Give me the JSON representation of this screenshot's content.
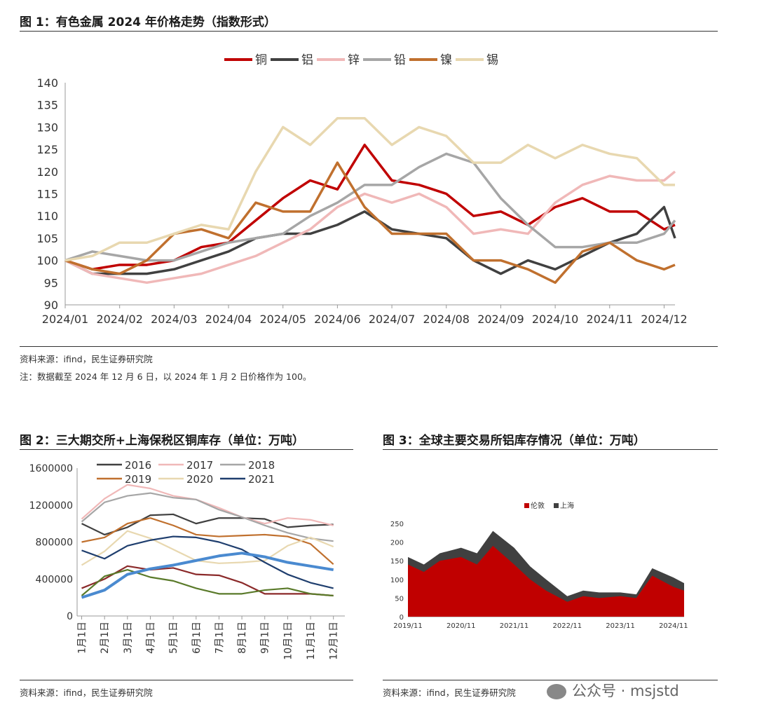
{
  "fig1": {
    "title": "图 1：有色金属 2024 年价格走势（指数形式）",
    "source": "资料来源：ifind，民生证券研究院",
    "note": "注：数据截至 2024 年 12 月 6 日，以 2024 年 1 月 2 日价格作为 100。"
  },
  "fig2": {
    "title": "图 2：三大期交所+上海保税区铜库存（单位：万吨）",
    "source": "资料来源：ifind，民生证券研究院"
  },
  "fig3": {
    "title": "图 3：全球主要交易所铝库存情况（单位：万吨）",
    "source": "资料来源：ifind，民生证券研究院"
  },
  "watermark": "公众号 · msjstd",
  "chart_data": [
    {
      "type": "line",
      "xlabels": [
        "2024/01",
        "2024/02",
        "2024/03",
        "2024/04",
        "2024/05",
        "2024/06",
        "2024/07",
        "2024/08",
        "2024/09",
        "2024/10",
        "2024/11",
        "2024/12"
      ],
      "x": [
        0,
        0.5,
        1,
        1.5,
        2,
        2.5,
        3,
        3.5,
        4,
        4.5,
        5,
        5.5,
        6,
        6.5,
        7,
        7.5,
        8,
        8.5,
        9,
        9.5,
        10,
        10.5,
        11,
        11.2
      ],
      "ylim": [
        90,
        140
      ],
      "yticks": [
        90,
        95,
        100,
        105,
        110,
        115,
        120,
        125,
        130,
        135,
        140
      ],
      "legend_position": "top",
      "series": [
        {
          "name": "铜",
          "color": "#c00000",
          "values": [
            100,
            98,
            99,
            99,
            100,
            103,
            104,
            109,
            114,
            118,
            116,
            126,
            118,
            117,
            115,
            110,
            111,
            108,
            112,
            114,
            111,
            111,
            107,
            108
          ]
        },
        {
          "name": "铝",
          "color": "#404040",
          "values": [
            100,
            97,
            97,
            97,
            98,
            100,
            102,
            105,
            106,
            106,
            108,
            111,
            107,
            106,
            105,
            100,
            97,
            100,
            98,
            101,
            104,
            106,
            112,
            105
          ]
        },
        {
          "name": "锌",
          "color": "#f0b8b8",
          "values": [
            100,
            97,
            96,
            95,
            96,
            97,
            99,
            101,
            104,
            107,
            112,
            115,
            113,
            115,
            112,
            106,
            107,
            106,
            113,
            117,
            119,
            118,
            118,
            120
          ]
        },
        {
          "name": "铅",
          "color": "#a6a6a6",
          "values": [
            100,
            102,
            101,
            100,
            100,
            102,
            104,
            105,
            106,
            110,
            113,
            117,
            117,
            121,
            124,
            122,
            114,
            108,
            103,
            103,
            104,
            104,
            106,
            109
          ]
        },
        {
          "name": "镍",
          "color": "#c0702e",
          "values": [
            100,
            98,
            97,
            100,
            106,
            107,
            105,
            113,
            111,
            111,
            122,
            112,
            106,
            106,
            106,
            100,
            100,
            98,
            95,
            102,
            104,
            100,
            98,
            99
          ]
        },
        {
          "name": "锡",
          "color": "#e8d8b0",
          "values": [
            100,
            101,
            104,
            104,
            106,
            108,
            107,
            120,
            130,
            126,
            132,
            132,
            126,
            130,
            128,
            122,
            122,
            126,
            123,
            126,
            124,
            123,
            117,
            117
          ]
        }
      ]
    },
    {
      "type": "line",
      "categories": [
        "1月1日",
        "2月1日",
        "3月1日",
        "4月1日",
        "5月1日",
        "6月1日",
        "7月1日",
        "8月1日",
        "9月1日",
        "10月1日",
        "11月1日",
        "12月1日"
      ],
      "ylim": [
        0,
        1600000
      ],
      "yticks": [
        0,
        400000,
        800000,
        1200000,
        1600000
      ],
      "series": [
        {
          "name": "2016",
          "color": "#404040",
          "values": [
            1000000,
            880000,
            960000,
            1090000,
            1100000,
            1000000,
            1060000,
            1060000,
            1050000,
            960000,
            980000,
            990000
          ]
        },
        {
          "name": "2017",
          "color": "#f0b8b8",
          "values": [
            1050000,
            1270000,
            1420000,
            1380000,
            1300000,
            1260000,
            1170000,
            1070000,
            1000000,
            1060000,
            1040000,
            980000
          ]
        },
        {
          "name": "2018",
          "color": "#a6a6a6",
          "values": [
            1020000,
            1230000,
            1300000,
            1330000,
            1280000,
            1260000,
            1150000,
            1070000,
            980000,
            900000,
            840000,
            810000
          ]
        },
        {
          "name": "2019",
          "color": "#c0702e",
          "values": [
            800000,
            850000,
            1000000,
            1060000,
            980000,
            880000,
            860000,
            870000,
            880000,
            860000,
            780000,
            560000
          ]
        },
        {
          "name": "2020",
          "color": "#e8d8b0",
          "values": [
            550000,
            700000,
            920000,
            840000,
            720000,
            600000,
            570000,
            580000,
            600000,
            760000,
            850000,
            750000
          ]
        },
        {
          "name": "2021",
          "color": "#1f3e6e",
          "values": [
            710000,
            620000,
            760000,
            820000,
            860000,
            850000,
            800000,
            720000,
            580000,
            450000,
            360000,
            300000
          ]
        },
        {
          "color": "#8b2a2a",
          "values": [
            300000,
            400000,
            540000,
            500000,
            520000,
            450000,
            440000,
            360000,
            240000,
            240000,
            240000,
            220000
          ]
        },
        {
          "color": "#5a7a2a",
          "values": [
            220000,
            430000,
            500000,
            420000,
            380000,
            300000,
            240000,
            240000,
            280000,
            300000,
            240000,
            220000
          ]
        },
        {
          "color": "#4a8ad0",
          "values": [
            200000,
            280000,
            450000,
            510000,
            550000,
            600000,
            650000,
            680000,
            640000,
            580000,
            540000,
            500000
          ]
        }
      ]
    },
    {
      "type": "area",
      "title": "",
      "xlabels": [
        "2019/11",
        "2020/11",
        "2021/11",
        "2022/11",
        "2023/11",
        "2024/11"
      ],
      "ylim": [
        0,
        250
      ],
      "yticks": [
        0,
        50,
        100,
        150,
        200,
        250
      ],
      "legend_position": "top",
      "x": [
        0,
        0.3,
        0.6,
        1,
        1.3,
        1.6,
        2,
        2.3,
        2.6,
        3,
        3.3,
        3.6,
        4,
        4.3,
        4.6,
        5,
        5.2
      ],
      "series": [
        {
          "name": "伦敦",
          "color": "#c00000",
          "values": [
            140,
            120,
            150,
            160,
            140,
            190,
            140,
            100,
            70,
            40,
            55,
            50,
            55,
            50,
            110,
            80,
            70
          ]
        },
        {
          "name": "上海",
          "color": "#404040",
          "values": [
            20,
            20,
            20,
            25,
            30,
            40,
            45,
            35,
            30,
            15,
            15,
            15,
            10,
            10,
            20,
            25,
            20
          ]
        }
      ]
    }
  ]
}
